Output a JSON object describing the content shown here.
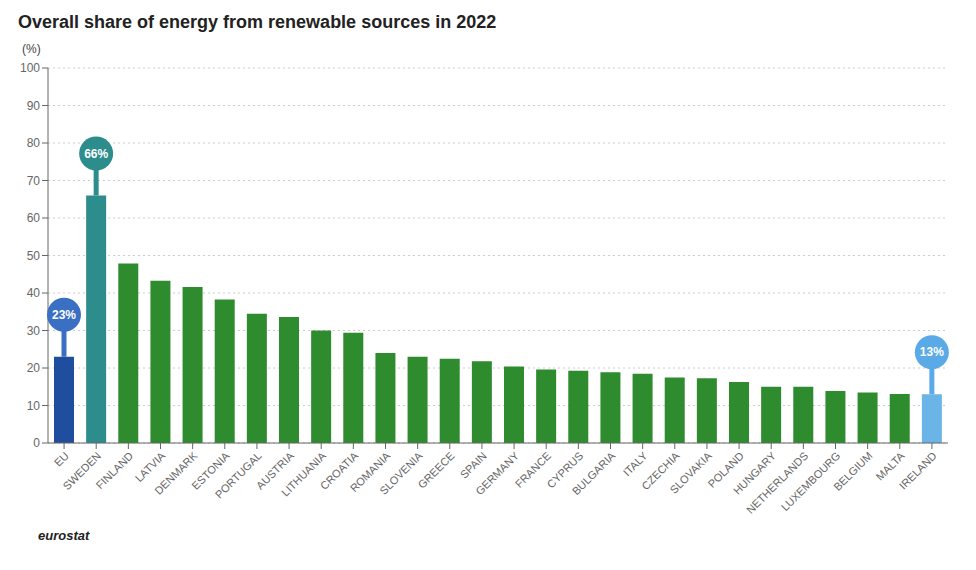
{
  "chart_data": {
    "type": "bar",
    "title": "Overall share of energy from renewable sources in 2022",
    "ylabel": "(%)",
    "categories": [
      "EU",
      "SWEDEN",
      "FINLAND",
      "LATVIA",
      "DENMARK",
      "ESTONIA",
      "PORTUGAL",
      "AUSTRIA",
      "LITHUANIA",
      "CROATIA",
      "ROMANIA",
      "SLOVENIA",
      "GREECE",
      "SPAIN",
      "GERMANY",
      "FRANCE",
      "CYPRUS",
      "BULGARIA",
      "ITALY",
      "CZECHIA",
      "SLOVAKIA",
      "POLAND",
      "HUNGARY",
      "NETHERLANDS",
      "LUXEMBOURG",
      "BELGIUM",
      "MALTA",
      "IRELAND"
    ],
    "values": [
      23,
      66,
      47.9,
      43.3,
      41.6,
      38.3,
      34.5,
      33.6,
      30.0,
      29.4,
      24.0,
      23.0,
      22.5,
      21.8,
      20.4,
      19.6,
      19.3,
      18.9,
      18.5,
      17.5,
      17.3,
      16.3,
      15.0,
      15.0,
      13.9,
      13.5,
      13.1,
      13.0
    ],
    "colors": [
      "#1f4e9e",
      "#2d8c8c",
      "#2e8b2e",
      "#2e8b2e",
      "#2e8b2e",
      "#2e8b2e",
      "#2e8b2e",
      "#2e8b2e",
      "#2e8b2e",
      "#2e8b2e",
      "#2e8b2e",
      "#2e8b2e",
      "#2e8b2e",
      "#2e8b2e",
      "#2e8b2e",
      "#2e8b2e",
      "#2e8b2e",
      "#2e8b2e",
      "#2e8b2e",
      "#2e8b2e",
      "#2e8b2e",
      "#2e8b2e",
      "#2e8b2e",
      "#2e8b2e",
      "#2e8b2e",
      "#2e8b2e",
      "#2e8b2e",
      "#6ab4e8"
    ],
    "ylim": [
      0,
      100
    ],
    "yticks": [
      0,
      10,
      20,
      30,
      40,
      50,
      60,
      70,
      80,
      90,
      100
    ],
    "grid": true,
    "annotations": [
      {
        "category": "EU",
        "text": "23%",
        "color": "#3a6fc4"
      },
      {
        "category": "SWEDEN",
        "text": "66%",
        "color": "#2d8c8c"
      },
      {
        "category": "IRELAND",
        "text": "13%",
        "color": "#5aaae8"
      },
      {
        "text": "eurostat"
      }
    ]
  }
}
